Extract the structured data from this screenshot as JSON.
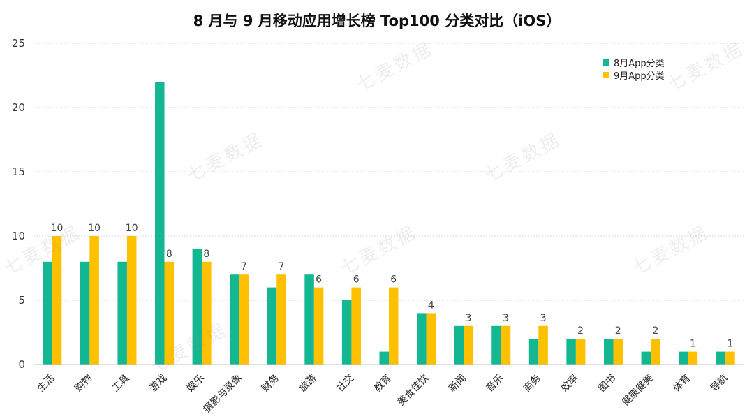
{
  "chart_data": {
    "type": "bar",
    "title": "8 月与 9 月移动应用增长榜 Top100 分类对比（iOS）",
    "categories": [
      "生活",
      "购物",
      "工具",
      "游戏",
      "娱乐",
      "摄影与录像",
      "财务",
      "旅游",
      "社交",
      "教育",
      "美食佳饮",
      "新闻",
      "音乐",
      "商务",
      "效率",
      "图书",
      "健康健美",
      "体育",
      "导航"
    ],
    "series": [
      {
        "name": "8月App分类",
        "color": "#13B791",
        "values": [
          8,
          8,
          8,
          22,
          9,
          7,
          6,
          7,
          5,
          1,
          4,
          3,
          3,
          2,
          2,
          2,
          1,
          1,
          1
        ]
      },
      {
        "name": "9月App分类",
        "color": "#FFC000",
        "values": [
          10,
          10,
          10,
          8,
          8,
          7,
          7,
          6,
          6,
          6,
          4,
          3,
          3,
          3,
          2,
          2,
          2,
          1,
          1
        ]
      }
    ],
    "data_labels": [
      "10",
      "10",
      "10",
      "8",
      "8",
      "7",
      "7",
      "6",
      "6",
      "6",
      "4",
      "3",
      "3",
      "3",
      "2",
      "2",
      "2",
      "1",
      "1"
    ],
    "ylim": [
      0,
      25
    ],
    "yticks": [
      "0",
      "5",
      "10",
      "15",
      "20",
      "25"
    ],
    "grid": true,
    "legend_position": "top-right"
  },
  "watermark_text": "七麦数据"
}
